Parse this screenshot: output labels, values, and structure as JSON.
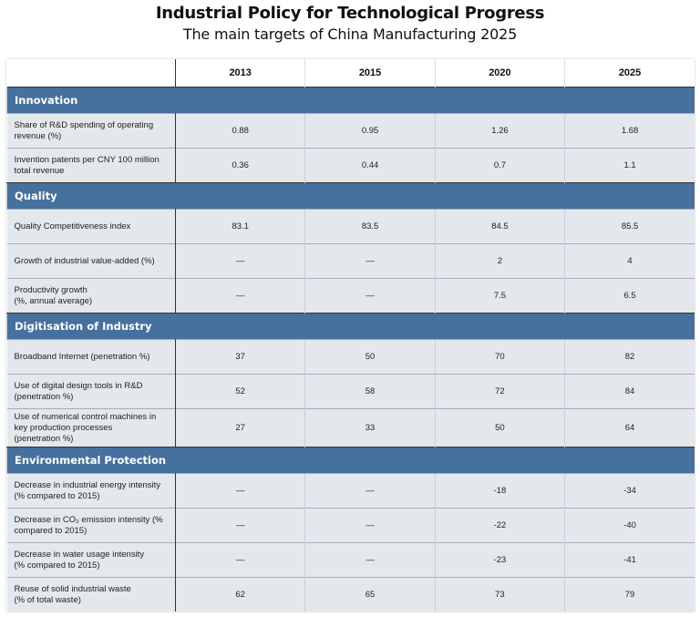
{
  "title": "Industrial Policy for Technological Progress",
  "subtitle": "The main targets of China Manufacturing 2025",
  "columns": [
    "",
    "2013",
    "2015",
    "2020",
    "2025"
  ],
  "sections": [
    {
      "name": "Innovation",
      "rows": [
        {
          "label": "Share of R&D spending of operating revenue (%)",
          "values": [
            "0.88",
            "0.95",
            "1.26",
            "1.68"
          ]
        },
        {
          "label": "Invention patents per CNY 100 million total revenue",
          "values": [
            "0.36",
            "0.44",
            "0.7",
            "1.1"
          ]
        }
      ]
    },
    {
      "name": "Quality",
      "rows": [
        {
          "label": "Quality Competitiveness index",
          "values": [
            "83.1",
            "83.5",
            "84.5",
            "85.5"
          ]
        },
        {
          "label": "Growth of industrial value-added (%)",
          "values": [
            "—",
            "—",
            "2",
            "4"
          ]
        },
        {
          "label": "Productivity growth\n (%, annual average)",
          "values": [
            "—",
            "—",
            "7.5",
            "6.5"
          ]
        }
      ]
    },
    {
      "name": "Digitisation of Industry",
      "rows": [
        {
          "label": "Broadband Internet (penetration %)",
          "values": [
            "37",
            "50",
            "70",
            "82"
          ]
        },
        {
          "label": "Use of digital design tools in R&D (penetration %)",
          "values": [
            "52",
            "58",
            "72",
            "84"
          ]
        },
        {
          "label": "Use of numerical control machines in key production processes\n (penetration %)",
          "values": [
            "27",
            "33",
            "50",
            "64"
          ]
        }
      ]
    },
    {
      "name": "Environmental Protection",
      "rows": [
        {
          "label": "Decrease in industrial energy intensity (% compared to 2015)",
          "values": [
            "—",
            "—",
            "-18",
            "-34"
          ]
        },
        {
          "label": "Decrease in CO₂ emission intensity (% compared to 2015)",
          "values": [
            "—",
            "—",
            "-22",
            "-40"
          ]
        },
        {
          "label": "Decrease in water usage intensity\n (% compared to 2015)",
          "values": [
            "—",
            "—",
            "-23",
            "-41"
          ]
        },
        {
          "label": "Reuse of solid industrial waste\n (% of total waste)",
          "values": [
            "62",
            "65",
            "73",
            "79"
          ]
        }
      ]
    }
  ],
  "colors": {
    "section_header": "#46709d",
    "row_bg": "#e3e8ed"
  }
}
